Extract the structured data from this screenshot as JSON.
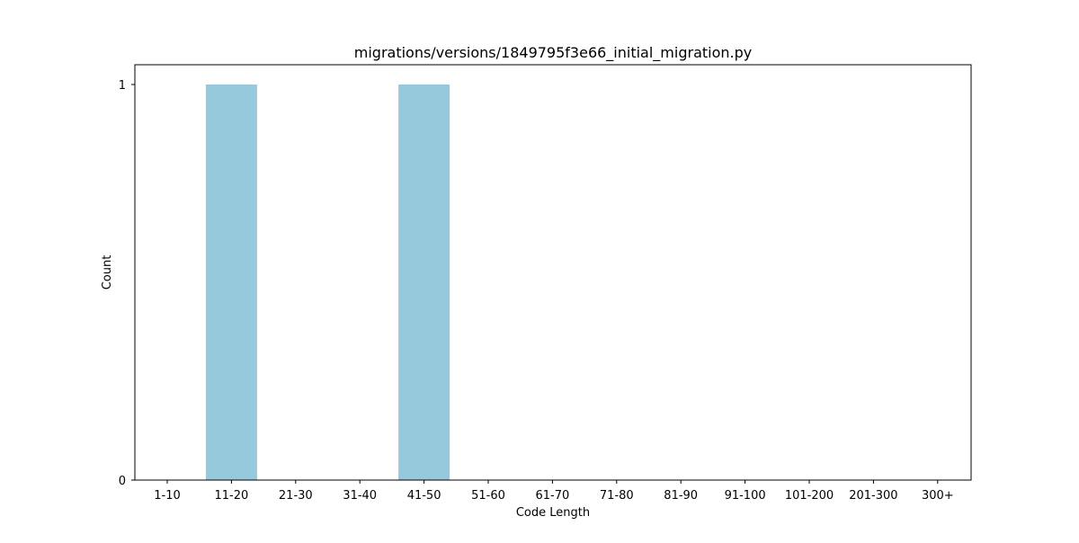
{
  "chart_data": {
    "type": "bar",
    "title": "migrations/versions/1849795f3e66_initial_migration.py",
    "xlabel": "Code Length",
    "ylabel": "Count",
    "categories": [
      "1-10",
      "11-20",
      "21-30",
      "31-40",
      "41-50",
      "51-60",
      "61-70",
      "71-80",
      "81-90",
      "91-100",
      "101-200",
      "201-300",
      "300+"
    ],
    "values": [
      0,
      1,
      0,
      0,
      1,
      0,
      0,
      0,
      0,
      0,
      0,
      0,
      0
    ],
    "ylim": [
      0,
      1
    ],
    "yticks": [
      "0",
      "1"
    ],
    "grid": false,
    "bar_color": "#96c9dc"
  }
}
